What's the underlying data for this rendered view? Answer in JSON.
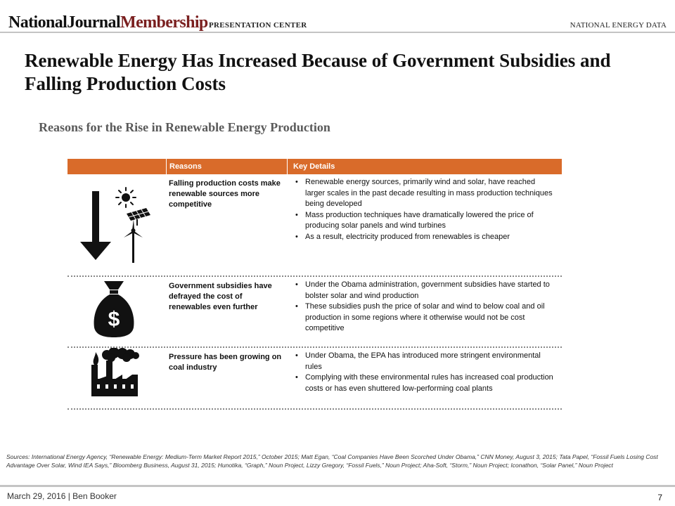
{
  "header": {
    "brand_part1": "NationalJournal",
    "brand_part2": "Membership",
    "presentation_center": "PRESENTATION CENTER",
    "section": "NATIONAL ENERGY DATA"
  },
  "slide": {
    "title": "Renewable Energy Has Increased Because of Government Subsidies and Falling Production Costs",
    "subtitle": "Reasons for the Rise in Renewable Energy Production"
  },
  "table": {
    "headers": {
      "reasons": "Reasons",
      "details": "Key Details"
    },
    "header_color": "#d96b2a",
    "rows": [
      {
        "icon": "falling-cost-energy-icon",
        "reason": "Falling production costs make renewable sources more competitive",
        "details": [
          "Renewable energy sources, primarily wind and solar, have reached larger scales in the past decade resulting in mass production techniques being developed",
          "Mass production techniques have dramatically lowered the price of producing solar panels and wind turbines",
          "As a result, electricity produced from renewables is cheaper"
        ]
      },
      {
        "icon": "money-bag-icon",
        "reason": "Government subsidies have defrayed the cost of renewables even further",
        "details": [
          "Under the Obama administration, government subsidies have started to bolster solar and wind production",
          "These subsidies push the price of solar and wind to below coal and oil production in some regions where it otherwise would not be cost competitive"
        ]
      },
      {
        "icon": "factory-smoke-icon",
        "reason": "Pressure has been growing on coal industry",
        "details": [
          "Under Obama, the EPA has introduced more stringent environmental rules",
          "Complying with these environmental rules has increased coal production costs or has even shuttered low-performing coal plants"
        ]
      }
    ]
  },
  "sources": "Sources: International Energy Agency, “Renewable Energy: Medium-Term Market Report 2015,” October 2015; Matt Egan, “Coal Companies Have Been Scorched Under Obama,” CNN Money, August 3, 2015; Tata Papel, “Fossil Fuels Losing Cost Advantage Over Solar, Wind IEA Says,” Bloomberg Business, August 31, 2015; Hunotika, “Graph,” Noun Project, Lizzy Gregory, “Fossil Fuels,” Noun Project; Aha-Soft, “Storm,” Noun Project; Iconathon, “Solar Panel,” Noun Project",
  "footer": {
    "date_author": "March 29, 2016  |  Ben Booker",
    "page_number": "7"
  }
}
